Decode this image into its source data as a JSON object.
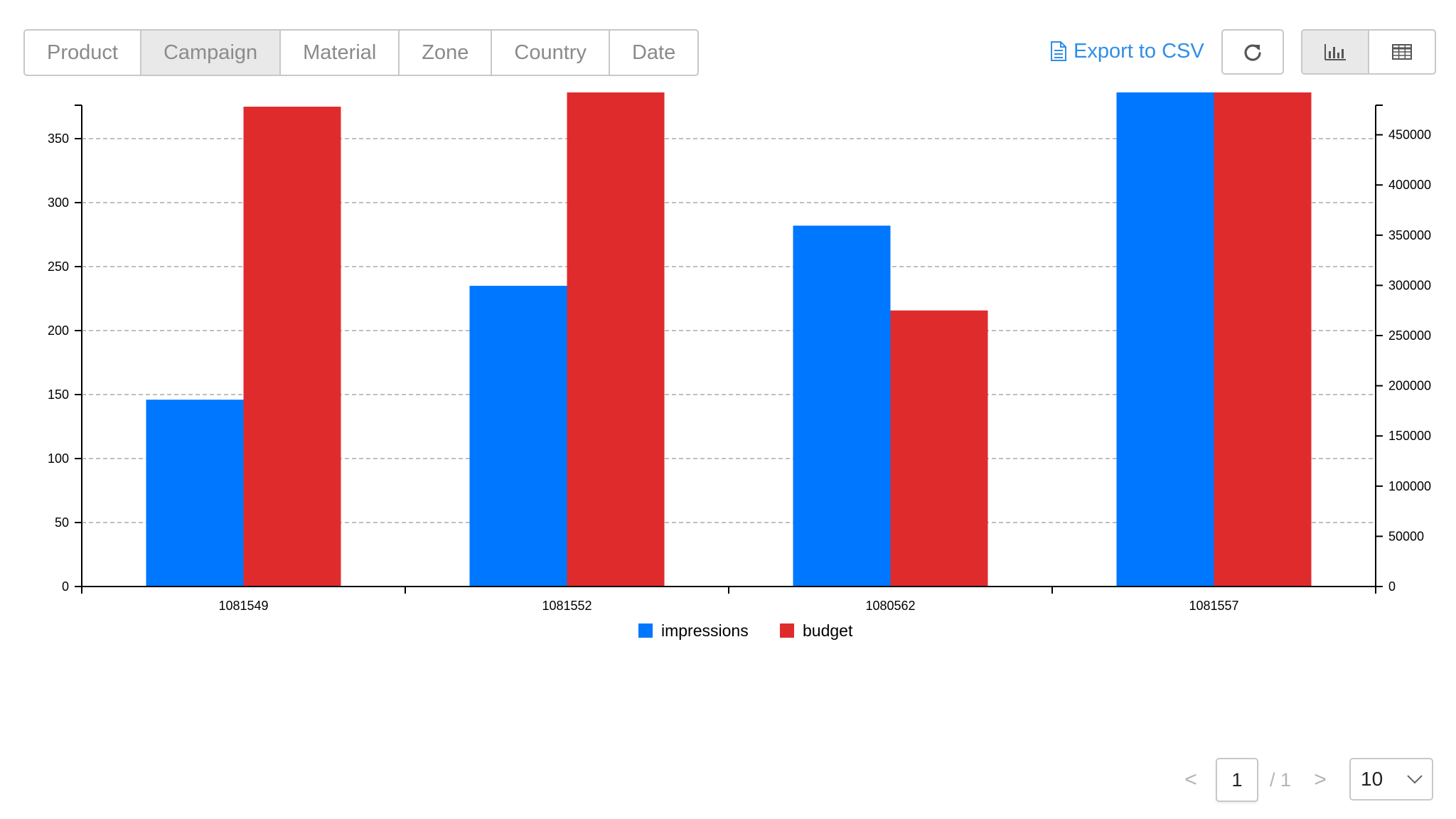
{
  "toolbar": {
    "dimensions": [
      {
        "label": "Product",
        "active": false
      },
      {
        "label": "Campaign",
        "active": true
      },
      {
        "label": "Material",
        "active": false
      },
      {
        "label": "Zone",
        "active": false
      },
      {
        "label": "Country",
        "active": false
      },
      {
        "label": "Date",
        "active": false
      }
    ],
    "export_label": "Export to CSV",
    "export_icon": "document-icon",
    "refresh_icon": "refresh-icon",
    "view_modes": [
      {
        "name": "bar-chart-icon",
        "active": true
      },
      {
        "name": "table-icon",
        "active": false
      }
    ]
  },
  "chart_data": {
    "type": "bar",
    "categories": [
      "1081549",
      "1081552",
      "1080562",
      "1081557"
    ],
    "series": [
      {
        "name": "impressions",
        "axis": "left",
        "color": "#0077ff",
        "values": [
          146,
          235,
          282,
          406
        ]
      },
      {
        "name": "budget",
        "axis": "right",
        "color": "#e02b2d",
        "values": [
          478000,
          518000,
          275000,
          518000
        ]
      }
    ],
    "left_axis": {
      "ylim": [
        0,
        450
      ],
      "ticks": [
        0,
        50,
        100,
        150,
        200,
        250,
        300,
        350,
        400
      ]
    },
    "right_axis": {
      "ylim": [
        0,
        570000
      ],
      "ticks": [
        0,
        50000,
        100000,
        150000,
        200000,
        250000,
        300000,
        350000,
        400000,
        450000,
        500000,
        550000
      ]
    },
    "grid": true,
    "legend_position": "bottom-center"
  },
  "pagination": {
    "prev_label": "<",
    "current_page": "1",
    "total_label": "/ 1",
    "next_label": ">",
    "page_size": "10"
  }
}
